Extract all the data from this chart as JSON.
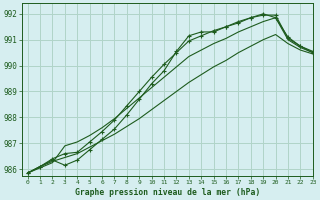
{
  "title": "Graphe pression niveau de la mer (hPa)",
  "bg_color": "#d6eef0",
  "grid_color": "#b0d4c8",
  "line_color": "#1e5c1e",
  "xlim": [
    -0.5,
    23
  ],
  "ylim": [
    985.75,
    992.4
  ],
  "yticks": [
    986,
    987,
    988,
    989,
    990,
    991,
    992
  ],
  "xticks": [
    0,
    1,
    2,
    3,
    4,
    5,
    6,
    7,
    8,
    9,
    10,
    11,
    12,
    13,
    14,
    15,
    16,
    17,
    18,
    19,
    20,
    21,
    22,
    23
  ],
  "series_with_markers": [
    [
      985.85,
      986.1,
      986.35,
      986.15,
      986.35,
      986.75,
      987.15,
      987.55,
      988.1,
      988.7,
      989.3,
      989.8,
      990.55,
      991.15,
      991.3,
      991.3,
      991.5,
      991.65,
      991.85,
      992.0,
      991.85,
      991.1,
      990.75,
      990.55
    ],
    [
      985.85,
      986.1,
      986.4,
      986.6,
      986.65,
      987.05,
      987.45,
      987.9,
      988.45,
      989.0,
      989.55,
      990.05,
      990.5,
      990.95,
      991.15,
      991.35,
      991.5,
      991.7,
      991.85,
      991.95,
      991.95,
      991.05,
      990.75,
      990.5
    ]
  ],
  "series_no_markers": [
    [
      985.85,
      986.05,
      986.25,
      986.9,
      987.05,
      987.3,
      987.6,
      987.95,
      988.35,
      988.75,
      989.15,
      989.55,
      989.95,
      990.35,
      990.6,
      990.85,
      991.05,
      991.3,
      991.5,
      991.7,
      991.85,
      991.0,
      990.7,
      990.5
    ],
    [
      985.85,
      986.1,
      986.3,
      986.45,
      986.6,
      986.85,
      987.1,
      987.35,
      987.65,
      987.95,
      988.3,
      988.65,
      989.0,
      989.35,
      989.65,
      989.95,
      990.2,
      990.5,
      990.75,
      991.0,
      991.2,
      990.85,
      990.6,
      990.45
    ]
  ]
}
